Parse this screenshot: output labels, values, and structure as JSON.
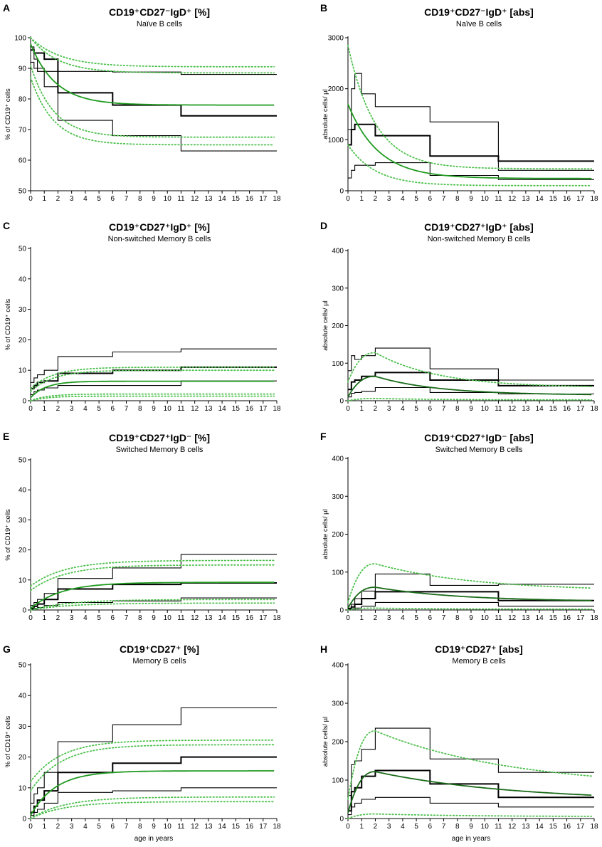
{
  "x_axis": {
    "label": "age in years",
    "range": [
      0,
      18
    ],
    "ticks": [
      0,
      1,
      2,
      3,
      4,
      5,
      6,
      7,
      8,
      9,
      10,
      11,
      12,
      13,
      14,
      15,
      16,
      17,
      18
    ]
  },
  "colors": {
    "fit": "#1f9a1f",
    "fit_dark": "#1a6b1a",
    "percentile": "#4cc04c",
    "step": "#000000"
  },
  "chart_data": [
    {
      "panel": "A",
      "type": "line",
      "title": "CD19⁺CD27⁻IgD⁺ [%]",
      "subtitle": "Naïve B cells",
      "ylabel": "% of CD19⁺ cells",
      "xlabel": "",
      "ylim": [
        50,
        100
      ],
      "yticks": [
        50,
        60,
        70,
        80,
        90,
        100
      ],
      "fit": {
        "kind": "decay",
        "start": 98,
        "end": 78,
        "rate": 0.55,
        "color": "#1f9a1f"
      },
      "percentiles": [
        {
          "name": "P95",
          "kind": "decay",
          "start": 100,
          "end": 90.5,
          "rate": 0.45
        },
        {
          "name": "P90",
          "kind": "decay",
          "start": 100,
          "end": 88.5,
          "rate": 0.5
        },
        {
          "name": "P10",
          "kind": "decay",
          "start": 91,
          "end": 67.5,
          "rate": 0.6
        },
        {
          "name": "P5",
          "kind": "decay",
          "start": 87,
          "end": 65,
          "rate": 0.6
        }
      ],
      "steps": [
        {
          "name": "P90",
          "x": [
            0,
            0.25,
            0.5,
            1,
            2,
            6,
            11,
            18
          ],
          "y": [
            97,
            93,
            90,
            89,
            89,
            88.8,
            88,
            88
          ]
        },
        {
          "name": "median",
          "x": [
            0,
            0.25,
            0.5,
            1,
            2,
            6,
            11,
            18
          ],
          "y": [
            96,
            95,
            95,
            93,
            82,
            78,
            74.5,
            74.5
          ]
        },
        {
          "name": "P10",
          "x": [
            0,
            0.25,
            0.5,
            1,
            2,
            6,
            11,
            18
          ],
          "y": [
            92,
            90,
            89,
            84,
            73,
            68,
            63,
            63
          ]
        }
      ]
    },
    {
      "panel": "B",
      "type": "line",
      "title": "CD19⁺CD27⁻IgD⁺ [abs]",
      "subtitle": "Naïve B cells",
      "ylabel": "absolute cells/ µl",
      "xlabel": "",
      "ylim": [
        0,
        3000
      ],
      "yticks": [
        0,
        1000,
        2000,
        3000
      ],
      "fit": {
        "kind": "decay",
        "start": 1700,
        "end": 240,
        "rate": 0.45,
        "color": "#1f9a1f"
      },
      "percentiles": [
        {
          "name": "P95",
          "kind": "decay",
          "start": 2850,
          "end": 430,
          "rate": 0.5
        },
        {
          "name": "P5",
          "kind": "decay",
          "start": 900,
          "end": 100,
          "rate": 0.5
        }
      ],
      "steps": [
        {
          "name": "P90",
          "x": [
            0,
            0.25,
            0.5,
            1,
            2,
            6,
            11,
            18
          ],
          "y": [
            1200,
            2000,
            2300,
            1900,
            1650,
            1350,
            400,
            400
          ]
        },
        {
          "name": "median",
          "x": [
            0,
            0.25,
            0.5,
            1,
            2,
            6,
            11,
            18
          ],
          "y": [
            900,
            1200,
            1300,
            1300,
            1080,
            680,
            580,
            280
          ]
        },
        {
          "name": "P10",
          "x": [
            0,
            0.25,
            0.5,
            1,
            2,
            6,
            11,
            18
          ],
          "y": [
            250,
            400,
            500,
            500,
            550,
            300,
            220,
            120
          ]
        }
      ]
    },
    {
      "panel": "C",
      "type": "line",
      "title": "CD19⁺CD27⁺IgD⁺ [%]",
      "subtitle": "Non-switched Memory B cells",
      "ylabel": "% of CD19⁺ cells",
      "xlabel": "",
      "ylim": [
        0,
        50
      ],
      "yticks": [
        0,
        10,
        20,
        30,
        40,
        50
      ],
      "fit": {
        "kind": "rise",
        "start": 1,
        "end": 6.4,
        "rate": 0.9,
        "color": "#1f9a1f"
      },
      "percentiles": [
        {
          "name": "P95",
          "kind": "rise",
          "start": 4,
          "end": 11,
          "rate": 0.6
        },
        {
          "name": "P90",
          "kind": "rise",
          "start": 3,
          "end": 10,
          "rate": 0.6
        },
        {
          "name": "P10",
          "kind": "rise",
          "start": 0,
          "end": 2.2,
          "rate": 0.8
        },
        {
          "name": "P5",
          "kind": "rise",
          "start": 0,
          "end": 1.5,
          "rate": 0.8
        }
      ],
      "steps": [
        {
          "name": "P90",
          "x": [
            0,
            0.25,
            0.5,
            1,
            2,
            6,
            11,
            18
          ],
          "y": [
            6,
            7.5,
            8.5,
            10,
            14.5,
            16,
            17,
            17
          ]
        },
        {
          "name": "median",
          "x": [
            0,
            0.25,
            0.5,
            1,
            2,
            6,
            11,
            18
          ],
          "y": [
            4,
            5,
            6,
            6.5,
            9,
            10,
            11,
            11
          ]
        },
        {
          "name": "P10",
          "x": [
            0,
            0.25,
            0.5,
            1,
            2,
            6,
            11,
            18
          ],
          "y": [
            2,
            3,
            3.5,
            4.2,
            5,
            5,
            6.5,
            6.5
          ]
        }
      ]
    },
    {
      "panel": "D",
      "type": "line",
      "title": "CD19⁺CD27⁺IgD⁺ [abs]",
      "subtitle": "Non-switched Memory B cells",
      "ylabel": "absolute cells/ µl",
      "xlabel": "",
      "ylim": [
        0,
        400
      ],
      "yticks": [
        0,
        100,
        200,
        300,
        400
      ],
      "fit": {
        "kind": "hump",
        "start": 10,
        "peak": 65,
        "peak_x": 2,
        "end": 15,
        "rate": 0.22,
        "color": "#1a6b1a"
      },
      "percentiles": [
        {
          "name": "P95",
          "kind": "hump",
          "start": 50,
          "peak": 128,
          "peak_x": 2,
          "end": 35,
          "rate": 0.22
        },
        {
          "name": "P5",
          "kind": "hump",
          "start": 0,
          "peak": 6,
          "peak_x": 2,
          "end": 2,
          "rate": 0.2
        }
      ],
      "steps": [
        {
          "name": "P90",
          "x": [
            0,
            0.25,
            0.5,
            1,
            2,
            6,
            11,
            18
          ],
          "y": [
            80,
            120,
            110,
            120,
            140,
            85,
            55,
            55
          ]
        },
        {
          "name": "median",
          "x": [
            0,
            0.25,
            0.5,
            1,
            2,
            6,
            11,
            18
          ],
          "y": [
            30,
            50,
            55,
            65,
            75,
            55,
            40,
            20
          ]
        },
        {
          "name": "P10",
          "x": [
            0,
            0.25,
            0.5,
            1,
            2,
            6,
            11,
            18
          ],
          "y": [
            10,
            20,
            22,
            25,
            35,
            22,
            18,
            15
          ]
        }
      ]
    },
    {
      "panel": "E",
      "type": "line",
      "title": "CD19⁺CD27⁺IgD⁻ [%]",
      "subtitle": "Switched Memory B cells",
      "ylabel": "% of CD19⁺ cells",
      "xlabel": "",
      "ylim": [
        0,
        50
      ],
      "yticks": [
        0,
        10,
        20,
        30,
        40,
        50
      ],
      "fit": {
        "kind": "rise",
        "start": 0.5,
        "end": 9.2,
        "rate": 0.45,
        "color": "#1f9a1f"
      },
      "percentiles": [
        {
          "name": "P95",
          "kind": "rise",
          "start": 8,
          "end": 16.5,
          "rate": 0.4
        },
        {
          "name": "P90",
          "kind": "rise",
          "start": 6.5,
          "end": 15,
          "rate": 0.4
        },
        {
          "name": "P10",
          "kind": "rise",
          "start": 0,
          "end": 3.5,
          "rate": 0.35
        },
        {
          "name": "P5",
          "kind": "rise",
          "start": 0,
          "end": 2.3,
          "rate": 0.35
        }
      ],
      "steps": [
        {
          "name": "P90",
          "x": [
            0,
            0.25,
            0.5,
            1,
            2,
            6,
            11,
            18
          ],
          "y": [
            1.5,
            2.5,
            3.5,
            5.5,
            10.5,
            14,
            18.5,
            18.5
          ]
        },
        {
          "name": "median",
          "x": [
            0,
            0.25,
            0.5,
            1,
            2,
            6,
            11,
            18
          ],
          "y": [
            0.5,
            1.2,
            2,
            3.5,
            7,
            8.5,
            9,
            9
          ]
        },
        {
          "name": "P10",
          "x": [
            0,
            0.25,
            0.5,
            1,
            2,
            6,
            11,
            18
          ],
          "y": [
            0.2,
            0.5,
            0.8,
            1.5,
            2.5,
            3,
            4,
            4
          ]
        }
      ]
    },
    {
      "panel": "F",
      "type": "line",
      "title": "CD19⁺CD27⁺IgD⁻ [abs]",
      "subtitle": "Switched Memory B cells",
      "ylabel": "absolute cells/ µl",
      "xlabel": "",
      "ylim": [
        0,
        400
      ],
      "yticks": [
        0,
        100,
        200,
        300,
        400
      ],
      "fit": {
        "kind": "hump",
        "start": 5,
        "peak": 60,
        "peak_x": 2,
        "end": 22,
        "rate": 0.16,
        "color": "#1a6b1a"
      },
      "percentiles": [
        {
          "name": "P95",
          "kind": "hump",
          "start": 20,
          "peak": 122,
          "peak_x": 2,
          "end": 50,
          "rate": 0.14
        },
        {
          "name": "P5",
          "kind": "hump",
          "start": 0,
          "peak": 5,
          "peak_x": 2,
          "end": 2,
          "rate": 0.2
        }
      ],
      "steps": [
        {
          "name": "P90",
          "x": [
            0,
            0.25,
            0.5,
            1,
            2,
            6,
            11,
            18
          ],
          "y": [
            5,
            15,
            30,
            50,
            95,
            65,
            68,
            68
          ]
        },
        {
          "name": "median",
          "x": [
            0,
            0.25,
            0.5,
            1,
            2,
            6,
            11,
            18
          ],
          "y": [
            3,
            8,
            15,
            30,
            48,
            48,
            25,
            25
          ]
        },
        {
          "name": "P10",
          "x": [
            0,
            0.25,
            0.5,
            1,
            2,
            6,
            11,
            18
          ],
          "y": [
            1,
            3,
            5,
            10,
            20,
            20,
            10,
            10
          ]
        }
      ]
    },
    {
      "panel": "G",
      "type": "line",
      "title": "CD19⁺CD27⁺ [%]",
      "subtitle": "Memory B cells",
      "ylabel": "% of CD19⁺ cells",
      "xlabel": "age in years",
      "ylim": [
        0,
        50
      ],
      "yticks": [
        0,
        10,
        20,
        30,
        40,
        50
      ],
      "fit": {
        "kind": "rise",
        "start": 1,
        "end": 15.5,
        "rate": 0.55,
        "color": "#1f9a1f"
      },
      "percentiles": [
        {
          "name": "P95",
          "kind": "rise",
          "start": 12,
          "end": 25.5,
          "rate": 0.45
        },
        {
          "name": "P90",
          "kind": "rise",
          "start": 9,
          "end": 24,
          "rate": 0.45
        },
        {
          "name": "P10",
          "kind": "rise",
          "start": 0,
          "end": 7,
          "rate": 0.4
        },
        {
          "name": "P5",
          "kind": "rise",
          "start": 0,
          "end": 5.5,
          "rate": 0.4
        }
      ],
      "steps": [
        {
          "name": "P90",
          "x": [
            0,
            0.25,
            0.5,
            1,
            2,
            6,
            11,
            18
          ],
          "y": [
            5,
            8,
            10,
            15,
            25,
            30.5,
            36,
            36
          ]
        },
        {
          "name": "median",
          "x": [
            0,
            0.25,
            0.5,
            1,
            2,
            6,
            11,
            18
          ],
          "y": [
            2,
            4,
            6,
            9,
            15,
            18,
            20,
            20
          ]
        },
        {
          "name": "P10",
          "x": [
            0,
            0.25,
            0.5,
            1,
            2,
            6,
            11,
            18
          ],
          "y": [
            1,
            2,
            3,
            5,
            8.5,
            9,
            10,
            10
          ]
        }
      ]
    },
    {
      "panel": "H",
      "type": "line",
      "title": "CD19⁺CD27⁺ [abs]",
      "subtitle": "Memory B cells",
      "ylabel": "absolute cells/ µl",
      "xlabel": "age in years",
      "ylim": [
        0,
        400
      ],
      "yticks": [
        0,
        100,
        200,
        300,
        400
      ],
      "fit": {
        "kind": "hump",
        "start": 15,
        "peak": 122,
        "peak_x": 2,
        "end": 45,
        "rate": 0.1,
        "color": "#1a6b1a"
      },
      "percentiles": [
        {
          "name": "P95",
          "kind": "hump",
          "start": 50,
          "peak": 228,
          "peak_x": 2,
          "end": 80,
          "rate": 0.1
        },
        {
          "name": "P5",
          "kind": "hump",
          "start": 0,
          "peak": 12,
          "peak_x": 2,
          "end": 5,
          "rate": 0.15
        }
      ],
      "steps": [
        {
          "name": "P90",
          "x": [
            0,
            0.25,
            0.5,
            1,
            2,
            6,
            11,
            18
          ],
          "y": [
            60,
            140,
            150,
            180,
            235,
            155,
            120,
            120
          ]
        },
        {
          "name": "median",
          "x": [
            0,
            0.25,
            0.5,
            1,
            2,
            6,
            11,
            18
          ],
          "y": [
            20,
            70,
            80,
            110,
            125,
            90,
            55,
            55
          ]
        },
        {
          "name": "P10",
          "x": [
            0,
            0.25,
            0.5,
            1,
            2,
            6,
            11,
            18
          ],
          "y": [
            10,
            30,
            40,
            50,
            55,
            40,
            30,
            30
          ]
        }
      ]
    }
  ]
}
